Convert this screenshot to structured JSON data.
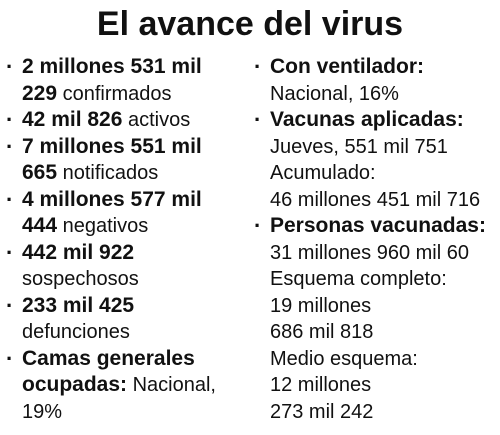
{
  "title": "El avance del virus",
  "left": {
    "confirmados": {
      "value_1": "2 millones 531 mil",
      "value_2": "229",
      "label": "confirmados"
    },
    "activos": {
      "value": "42 mil 826",
      "label": "activos"
    },
    "notificados": {
      "value_1": "7 millones 551 mil",
      "value_2": "665",
      "label": "notificados"
    },
    "negativos": {
      "value_1": "4 millones 577 mil",
      "value_2": "444",
      "label": "negativos"
    },
    "sospechosos": {
      "value": "442 mil 922",
      "label": "sospechosos"
    },
    "defunciones": {
      "value": "233 mil 425",
      "label": "defunciones"
    },
    "camas": {
      "label_1": "Camas generales",
      "label_2": "ocupadas:",
      "text_1": "Nacional,",
      "text_2": "19%"
    }
  },
  "right": {
    "ventilador": {
      "label": "Con ventilador:",
      "text": "Nacional, 16%"
    },
    "vacunas": {
      "label": "Vacunas aplicadas:",
      "jueves": "Jueves, 551 mil 751",
      "acumulado_label": "Acumulado:",
      "acumulado_value": "46 millones 451 mil 716"
    },
    "personas": {
      "label": "Personas vacunadas:",
      "total": "31 millones 960 mil 60",
      "completo_label": "Esquema completo:",
      "completo_1": "19 millones",
      "completo_2": "686 mil 818",
      "medio_label": "Medio esquema:",
      "medio_1": "12 millones",
      "medio_2": "273 mil 242"
    }
  }
}
